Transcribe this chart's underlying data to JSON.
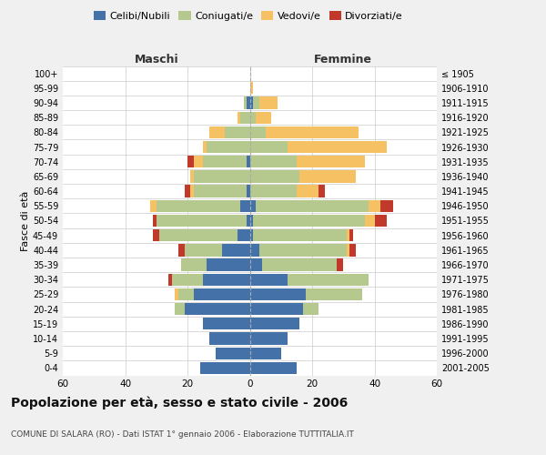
{
  "age_groups": [
    "0-4",
    "5-9",
    "10-14",
    "15-19",
    "20-24",
    "25-29",
    "30-34",
    "35-39",
    "40-44",
    "45-49",
    "50-54",
    "55-59",
    "60-64",
    "65-69",
    "70-74",
    "75-79",
    "80-84",
    "85-89",
    "90-94",
    "95-99",
    "100+"
  ],
  "birth_years": [
    "2001-2005",
    "1996-2000",
    "1991-1995",
    "1986-1990",
    "1981-1985",
    "1976-1980",
    "1971-1975",
    "1966-1970",
    "1961-1965",
    "1956-1960",
    "1951-1955",
    "1946-1950",
    "1941-1945",
    "1936-1940",
    "1931-1935",
    "1926-1930",
    "1921-1925",
    "1916-1920",
    "1911-1915",
    "1906-1910",
    "≤ 1905"
  ],
  "male": {
    "celibi": [
      16,
      11,
      13,
      15,
      21,
      18,
      15,
      14,
      9,
      4,
      1,
      3,
      1,
      0,
      1,
      0,
      0,
      0,
      1,
      0,
      0
    ],
    "coniugati": [
      0,
      0,
      0,
      0,
      3,
      5,
      10,
      8,
      12,
      25,
      29,
      27,
      17,
      18,
      14,
      14,
      8,
      3,
      1,
      0,
      0
    ],
    "vedovi": [
      0,
      0,
      0,
      0,
      0,
      1,
      0,
      0,
      0,
      0,
      0,
      2,
      1,
      1,
      3,
      1,
      5,
      1,
      0,
      0,
      0
    ],
    "divorziati": [
      0,
      0,
      0,
      0,
      0,
      0,
      1,
      0,
      2,
      2,
      1,
      0,
      2,
      0,
      2,
      0,
      0,
      0,
      0,
      0,
      0
    ]
  },
  "female": {
    "nubili": [
      15,
      10,
      12,
      16,
      17,
      18,
      12,
      4,
      3,
      1,
      1,
      2,
      0,
      0,
      0,
      0,
      0,
      0,
      1,
      0,
      0
    ],
    "coniugate": [
      0,
      0,
      0,
      0,
      5,
      18,
      26,
      24,
      28,
      30,
      36,
      36,
      15,
      16,
      15,
      12,
      5,
      2,
      2,
      0,
      0
    ],
    "vedove": [
      0,
      0,
      0,
      0,
      0,
      0,
      0,
      0,
      1,
      1,
      3,
      4,
      7,
      18,
      22,
      32,
      30,
      5,
      6,
      1,
      0
    ],
    "divorziate": [
      0,
      0,
      0,
      0,
      0,
      0,
      0,
      2,
      2,
      1,
      4,
      4,
      2,
      0,
      0,
      0,
      0,
      0,
      0,
      0,
      0
    ]
  },
  "colors": {
    "celibi": "#4472a8",
    "coniugati": "#b5c98e",
    "vedovi": "#f6c163",
    "divorziati": "#c0392b"
  },
  "title": "Popolazione per età, sesso e stato civile - 2006",
  "subtitle": "COMUNE DI SALARA (RO) - Dati ISTAT 1° gennaio 2006 - Elaborazione TUTTITALIA.IT",
  "ylabel_left": "Fasce di età",
  "xlabel_left": "Maschi",
  "xlabel_right": "Femmine",
  "xlim": 60,
  "bg_color": "#f0f0f0",
  "plot_bg": "#ffffff"
}
